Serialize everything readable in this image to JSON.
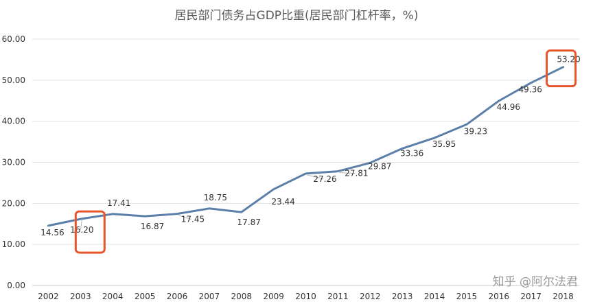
{
  "chart_data": {
    "type": "line",
    "title": "居民部门债务占GDP比重(居民部门杠杆率，%)",
    "xlabel": "",
    "ylabel": "",
    "x": [
      "2002",
      "2003",
      "2004",
      "2005",
      "2006",
      "2007",
      "2008",
      "2009",
      "2010",
      "2011",
      "2012",
      "2013",
      "2014",
      "2015",
      "2016",
      "2017",
      "2018"
    ],
    "series": [
      {
        "name": "居民部门杠杆率",
        "color": "#5b7fa8",
        "values": [
          14.56,
          16.2,
          17.41,
          16.87,
          17.45,
          18.75,
          17.87,
          23.44,
          27.26,
          27.81,
          29.87,
          33.36,
          35.95,
          39.23,
          44.96,
          49.36,
          53.2
        ],
        "labels": [
          "14.56",
          "16.20",
          "17.41",
          "16.87",
          "17.45",
          "18.75",
          "17.87",
          "23.44",
          "27.26",
          "27.81",
          "29.87",
          "33.36",
          "35.95",
          "39.23",
          "44.96",
          "49.36",
          "53.20"
        ]
      }
    ],
    "ylim": [
      0,
      60
    ],
    "yticks": [
      "0.00",
      "10.00",
      "20.00",
      "30.00",
      "40.00",
      "50.00",
      "60.00"
    ],
    "grid": true,
    "highlighted": [
      "2003",
      "2018"
    ],
    "highlight_color": "#e8552b"
  },
  "watermark": "知乎 @阿尔法君"
}
